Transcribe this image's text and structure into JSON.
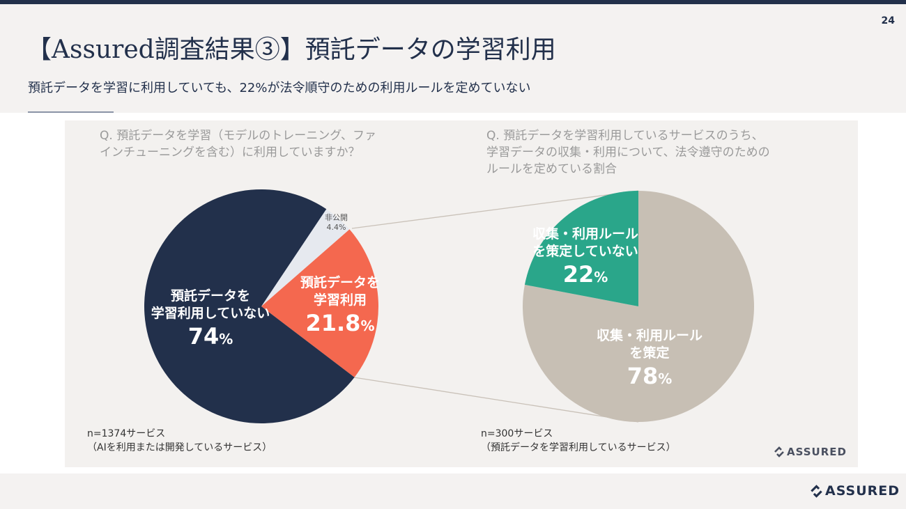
{
  "header": {
    "page_number": "24",
    "title": "【Assured調査結果③】預託データの学習利用",
    "subtitle": "預託データを学習に利用していても、22%が法令順守のための利用ルールを定めていない"
  },
  "brand": {
    "logo_text": "ASSURED"
  },
  "colors": {
    "navy": "#22304b",
    "coral": "#f4684f",
    "light": "#e6e9ef",
    "green": "#2aa68a",
    "beige": "#c7bfb4",
    "connector": "#c9c1b8"
  },
  "chart_data": [
    {
      "type": "pie",
      "title_lines": [
        "Q. 預託データを学習（モデルのトレーニング、ファ",
        "インチューニングを含む）に利用していますか？"
      ],
      "slices": [
        {
          "label": "非公開",
          "value": 4.4,
          "display": "4.4%",
          "color": "#e6e9ef"
        },
        {
          "label_lines": [
            "預託データを",
            "学習利用"
          ],
          "value": 21.8,
          "display": "21.8",
          "unit": "%",
          "color": "#f4684f"
        },
        {
          "label_lines": [
            "預託データを",
            "学習利用していない"
          ],
          "value": 74,
          "display": "74",
          "unit": "%",
          "color": "#22304b"
        }
      ],
      "note_lines": [
        "n=1374サービス",
        "（AIを利用または開発しているサービス）"
      ]
    },
    {
      "type": "pie",
      "title_lines": [
        "Q. 預託データを学習利用しているサービスのうち、",
        "学習データの収集・利用について、法令遵守のための",
        "ルールを定めている割合"
      ],
      "slices": [
        {
          "label_lines": [
            "収集・利用ルール",
            "を策定"
          ],
          "value": 78,
          "display": "78",
          "unit": "%",
          "color": "#c7bfb4"
        },
        {
          "label_lines": [
            "収集・利用ルール",
            "を策定していない"
          ],
          "value": 22,
          "display": "22",
          "unit": "%",
          "color": "#2aa68a"
        }
      ],
      "note_lines": [
        "n=300サービス",
        "（預託データを学習利用しているサービス）"
      ]
    }
  ]
}
